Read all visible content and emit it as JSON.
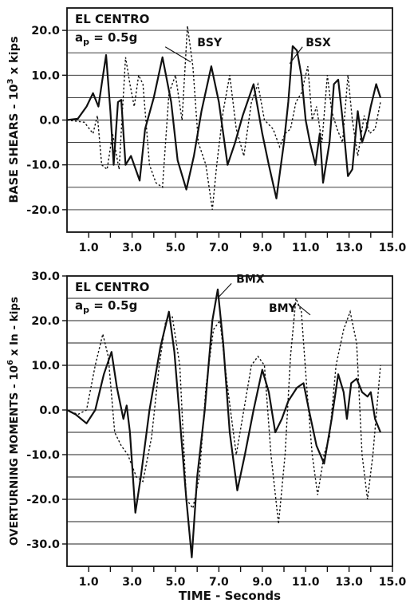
{
  "chart_data": [
    {
      "type": "line",
      "annotation_site": "EL CENTRO",
      "annotation_accel": "a",
      "annotation_accel_sub": "p",
      "annotation_accel_val": " = 0.5g",
      "ylabel_main": "BASE  SHEARS - 10",
      "ylabel_exp": "3",
      "ylabel_unit": " x kips",
      "xlabel": "",
      "xlim": [
        0,
        15
      ],
      "ylim": [
        -25,
        25
      ],
      "xticks": [
        1,
        2,
        3,
        4,
        5,
        6,
        7,
        8,
        9,
        10,
        11,
        12,
        13,
        14,
        15
      ],
      "xtick_labels": [
        "1.0",
        "",
        "3.0",
        "",
        "5.0",
        "",
        "7.0",
        "",
        "9.0",
        "",
        "11.0",
        "",
        "13.0",
        "",
        "15.0"
      ],
      "yticks": [
        -20,
        -10,
        0,
        10,
        20
      ],
      "ytick_labels": [
        "-20.0",
        "-10.0",
        "0.0",
        "10.0",
        "20.0"
      ],
      "grid_y": [
        -20,
        -15,
        -10,
        -5,
        0,
        5,
        10,
        15,
        20
      ],
      "series": [
        {
          "name": "BSX",
          "style": "solid",
          "points": [
            [
              0,
              0
            ],
            [
              0.5,
              0.3
            ],
            [
              0.9,
              3
            ],
            [
              1.2,
              6
            ],
            [
              1.45,
              3
            ],
            [
              1.6,
              8
            ],
            [
              1.8,
              14.5
            ],
            [
              2.0,
              2
            ],
            [
              2.15,
              -10
            ],
            [
              2.35,
              4
            ],
            [
              2.5,
              4.5
            ],
            [
              2.7,
              -10
            ],
            [
              2.95,
              -8
            ],
            [
              3.35,
              -13.5
            ],
            [
              3.6,
              -2
            ],
            [
              4.0,
              5
            ],
            [
              4.4,
              14
            ],
            [
              4.8,
              4
            ],
            [
              5.1,
              -9
            ],
            [
              5.5,
              -15.5
            ],
            [
              5.85,
              -8
            ],
            [
              6.2,
              2
            ],
            [
              6.65,
              12
            ],
            [
              7.0,
              4
            ],
            [
              7.4,
              -10
            ],
            [
              7.75,
              -5
            ],
            [
              8.1,
              1
            ],
            [
              8.6,
              8
            ],
            [
              9.0,
              -3
            ],
            [
              9.3,
              -10
            ],
            [
              9.65,
              -17.5
            ],
            [
              10.0,
              -5
            ],
            [
              10.2,
              4
            ],
            [
              10.4,
              16.5
            ],
            [
              10.6,
              15.5
            ],
            [
              10.8,
              10
            ],
            [
              11.0,
              0
            ],
            [
              11.2,
              -5
            ],
            [
              11.45,
              -10
            ],
            [
              11.65,
              -3
            ],
            [
              11.8,
              -14
            ],
            [
              12.1,
              -5
            ],
            [
              12.3,
              8
            ],
            [
              12.5,
              9
            ],
            [
              12.75,
              -2
            ],
            [
              12.95,
              -12.5
            ],
            [
              13.15,
              -11
            ],
            [
              13.4,
              2
            ],
            [
              13.6,
              -5
            ],
            [
              13.8,
              -2
            ],
            [
              14.0,
              3
            ],
            [
              14.25,
              8
            ],
            [
              14.45,
              5
            ]
          ]
        },
        {
          "name": "BSY",
          "style": "dotted",
          "points": [
            [
              0,
              0
            ],
            [
              0.8,
              -0.5
            ],
            [
              1.2,
              -3
            ],
            [
              1.4,
              1
            ],
            [
              1.6,
              -10
            ],
            [
              1.85,
              -11
            ],
            [
              2.1,
              -3
            ],
            [
              2.4,
              -11
            ],
            [
              2.7,
              14
            ],
            [
              2.9,
              8
            ],
            [
              3.1,
              3
            ],
            [
              3.3,
              10
            ],
            [
              3.5,
              8
            ],
            [
              3.8,
              -10
            ],
            [
              4.1,
              -14
            ],
            [
              4.4,
              -15
            ],
            [
              4.7,
              6
            ],
            [
              5.0,
              10
            ],
            [
              5.3,
              0
            ],
            [
              5.55,
              21
            ],
            [
              5.8,
              12
            ],
            [
              6.05,
              -5
            ],
            [
              6.4,
              -10
            ],
            [
              6.7,
              -20
            ],
            [
              6.9,
              -10
            ],
            [
              7.2,
              2
            ],
            [
              7.5,
              10
            ],
            [
              7.8,
              -2
            ],
            [
              8.15,
              -8
            ],
            [
              8.5,
              4
            ],
            [
              8.8,
              8
            ],
            [
              9.1,
              0
            ],
            [
              9.5,
              -2
            ],
            [
              9.8,
              -6
            ],
            [
              10.05,
              -3
            ],
            [
              10.3,
              -2
            ],
            [
              10.55,
              4
            ],
            [
              10.8,
              6
            ],
            [
              11.1,
              12
            ],
            [
              11.3,
              0
            ],
            [
              11.5,
              3
            ],
            [
              11.75,
              -5
            ],
            [
              12.0,
              10
            ],
            [
              12.2,
              2
            ],
            [
              12.45,
              -2
            ],
            [
              12.7,
              -5
            ],
            [
              12.95,
              10
            ],
            [
              13.15,
              0
            ],
            [
              13.4,
              -8
            ],
            [
              13.7,
              1
            ],
            [
              13.95,
              -3
            ],
            [
              14.2,
              -2
            ],
            [
              14.45,
              4
            ]
          ]
        }
      ],
      "labels": [
        {
          "text": "BSY",
          "x": 6.0,
          "y": 16.5
        },
        {
          "text": "BSX",
          "x": 11.0,
          "y": 16.5
        }
      ]
    },
    {
      "type": "line",
      "annotation_site": "EL CENTRO",
      "annotation_accel": "a",
      "annotation_accel_sub": "p",
      "annotation_accel_val": " = 0.5g",
      "ylabel_main": "OVERTURNING MOMENTS - 10",
      "ylabel_exp": "6",
      "ylabel_unit": " x In - kips",
      "xlabel": "TIME  -  Seconds",
      "xlim": [
        0,
        15
      ],
      "ylim": [
        -35,
        30
      ],
      "xticks": [
        1,
        2,
        3,
        4,
        5,
        6,
        7,
        8,
        9,
        10,
        11,
        12,
        13,
        14,
        15
      ],
      "xtick_labels": [
        "1.0",
        "",
        "3.0",
        "",
        "5.0",
        "",
        "7.0",
        "",
        "9.0",
        "",
        "11.0",
        "",
        "13.0",
        "",
        "15.0"
      ],
      "yticks": [
        -30,
        -20,
        -10,
        0,
        10,
        20,
        30
      ],
      "ytick_labels": [
        "-30.0",
        "-20.0",
        "-10.0",
        "0.0",
        "10.0",
        "20.0",
        "30.0"
      ],
      "grid_y": [
        -30,
        -25,
        -20,
        -15,
        -10,
        -5,
        0,
        5,
        10,
        15,
        20,
        25
      ],
      "series": [
        {
          "name": "BMX",
          "style": "solid",
          "points": [
            [
              0,
              0
            ],
            [
              0.4,
              -1
            ],
            [
              0.9,
              -3
            ],
            [
              1.3,
              0
            ],
            [
              1.7,
              8
            ],
            [
              2.05,
              13
            ],
            [
              2.3,
              5
            ],
            [
              2.6,
              -2
            ],
            [
              2.75,
              1
            ],
            [
              2.9,
              -5
            ],
            [
              3.15,
              -23
            ],
            [
              3.4,
              -15
            ],
            [
              3.8,
              0
            ],
            [
              4.3,
              14
            ],
            [
              4.7,
              22
            ],
            [
              4.95,
              13
            ],
            [
              5.25,
              -5
            ],
            [
              5.5,
              -20
            ],
            [
              5.75,
              -33
            ],
            [
              6.0,
              -15
            ],
            [
              6.35,
              0
            ],
            [
              6.7,
              20
            ],
            [
              6.95,
              27
            ],
            [
              7.2,
              15
            ],
            [
              7.5,
              -5
            ],
            [
              7.85,
              -18
            ],
            [
              8.2,
              -10
            ],
            [
              8.6,
              0
            ],
            [
              9.0,
              9
            ],
            [
              9.3,
              4
            ],
            [
              9.6,
              -5
            ],
            [
              9.9,
              -2
            ],
            [
              10.2,
              2
            ],
            [
              10.6,
              5
            ],
            [
              10.9,
              6
            ],
            [
              11.15,
              0
            ],
            [
              11.5,
              -8
            ],
            [
              11.85,
              -12
            ],
            [
              12.2,
              -2
            ],
            [
              12.5,
              8
            ],
            [
              12.75,
              4
            ],
            [
              12.9,
              -2
            ],
            [
              13.1,
              6
            ],
            [
              13.35,
              7
            ],
            [
              13.6,
              4
            ],
            [
              13.85,
              3
            ],
            [
              14.0,
              4
            ],
            [
              14.2,
              -2
            ],
            [
              14.45,
              -5
            ]
          ]
        },
        {
          "name": "BMY",
          "style": "dotted",
          "points": [
            [
              0,
              0
            ],
            [
              0.5,
              -1
            ],
            [
              0.9,
              0
            ],
            [
              1.3,
              10
            ],
            [
              1.65,
              17
            ],
            [
              1.9,
              12
            ],
            [
              2.2,
              -5
            ],
            [
              2.5,
              -8
            ],
            [
              2.8,
              -10
            ],
            [
              3.2,
              -15
            ],
            [
              3.5,
              -16
            ],
            [
              3.9,
              -6
            ],
            [
              4.25,
              10
            ],
            [
              4.55,
              20
            ],
            [
              4.85,
              21
            ],
            [
              5.2,
              10
            ],
            [
              5.5,
              -20
            ],
            [
              5.8,
              -22
            ],
            [
              6.1,
              -15
            ],
            [
              6.4,
              5
            ],
            [
              6.75,
              18
            ],
            [
              7.05,
              20
            ],
            [
              7.4,
              5
            ],
            [
              7.8,
              -10
            ],
            [
              8.15,
              0
            ],
            [
              8.5,
              10
            ],
            [
              8.8,
              12
            ],
            [
              9.1,
              10
            ],
            [
              9.4,
              -10
            ],
            [
              9.75,
              -25.5
            ],
            [
              10.05,
              -10
            ],
            [
              10.3,
              12
            ],
            [
              10.55,
              25
            ],
            [
              10.8,
              22
            ],
            [
              11.05,
              5
            ],
            [
              11.3,
              -10
            ],
            [
              11.55,
              -19
            ],
            [
              11.85,
              -10
            ],
            [
              12.1,
              -6
            ],
            [
              12.4,
              10
            ],
            [
              12.75,
              18
            ],
            [
              13.05,
              22
            ],
            [
              13.35,
              15
            ],
            [
              13.6,
              -10
            ],
            [
              13.85,
              -20
            ],
            [
              14.1,
              -10
            ],
            [
              14.45,
              10
            ]
          ]
        }
      ],
      "labels": [
        {
          "text": "BMX",
          "x": 7.8,
          "y": 28.5
        },
        {
          "text": "BMY",
          "x": 9.3,
          "y": 22.0
        }
      ]
    }
  ]
}
